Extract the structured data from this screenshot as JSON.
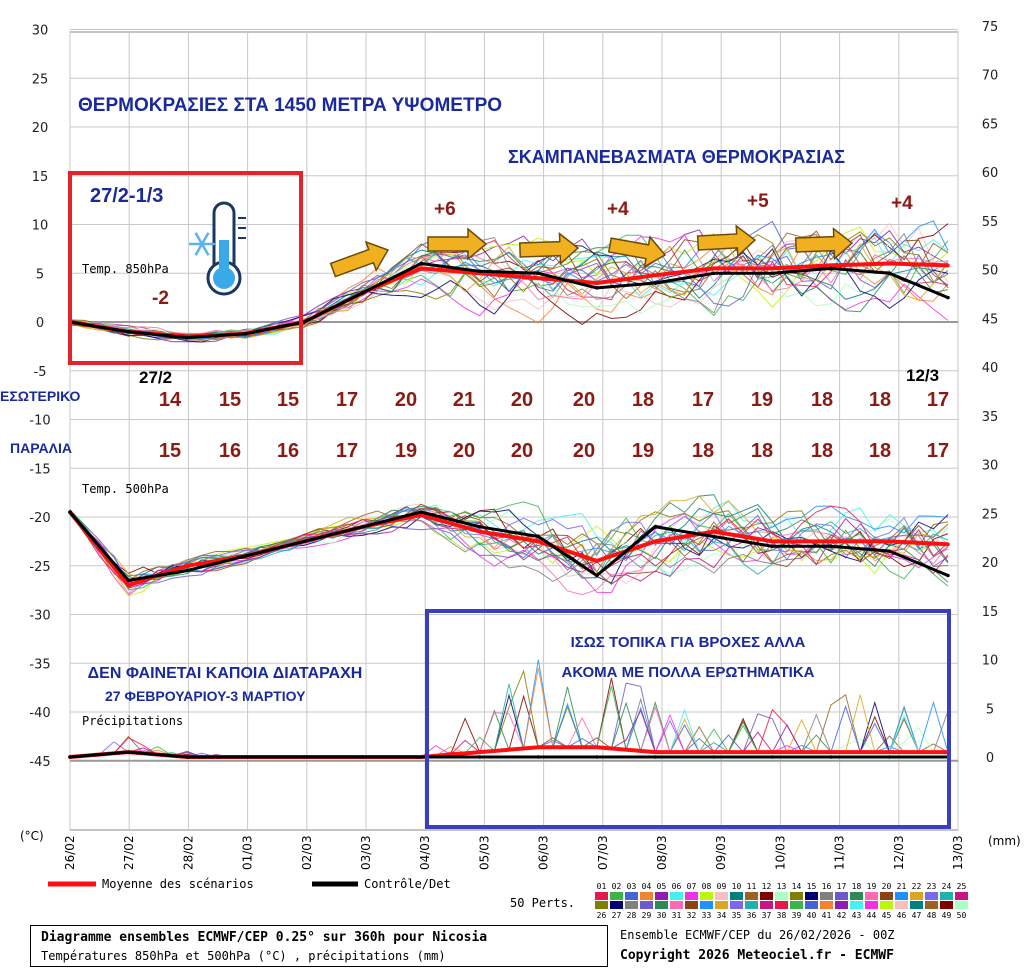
{
  "chart_data": {
    "type": "line",
    "dates": [
      "26/02",
      "27/02",
      "28/02",
      "01/03",
      "02/03",
      "03/03",
      "04/03",
      "05/03",
      "06/03",
      "07/03",
      "08/03",
      "09/03",
      "10/03",
      "11/03",
      "12/03",
      "13/03"
    ],
    "left_axis": {
      "unit": "(°C)",
      "ticks": [
        30,
        25,
        20,
        15,
        10,
        5,
        0,
        -5,
        -10,
        -15,
        -20,
        -25,
        -30,
        -35,
        -40,
        -45
      ]
    },
    "right_axis": {
      "unit": "(mm)",
      "ticks": [
        75,
        70,
        65,
        60,
        55,
        50,
        45,
        40,
        35,
        30,
        25,
        20,
        15,
        10,
        5,
        0
      ]
    },
    "panels": [
      {
        "label": "Temp. 850hPa",
        "series": [
          {
            "name": "Moyenne des scénarios",
            "color": "#ff1010",
            "values": [
              0,
              -1,
              -1.5,
              -1.2,
              0,
              3,
              5.5,
              5,
              4.5,
              4,
              4.8,
              5.5,
              5.5,
              5.8,
              6,
              5.8
            ]
          },
          {
            "name": "Contrôle/Det",
            "color": "#000000",
            "values": [
              0,
              -1,
              -1.6,
              -1.2,
              0,
              3,
              6,
              5.2,
              5,
              3.5,
              4,
              5,
              5,
              5.5,
              5,
              2.5
            ]
          }
        ]
      },
      {
        "label": "Temp. 500hPa",
        "series": [
          {
            "name": "Moyenne des scénarios",
            "color": "#ff1010",
            "values": [
              -19.5,
              -27,
              -25,
              -24,
              -22.5,
              -21,
              -19.8,
              -21.5,
              -22.5,
              -24.5,
              -22.5,
              -21.5,
              -22.5,
              -22.5,
              -22.5,
              -22.8
            ]
          },
          {
            "name": "Contrôle/Det",
            "color": "#000000",
            "values": [
              -19.5,
              -26.5,
              -25.5,
              -24,
              -22.5,
              -21,
              -19.5,
              -21,
              -22,
              -26,
              -21,
              -22,
              -23,
              -23,
              -23.5,
              -26
            ]
          }
        ]
      },
      {
        "label": "Précipitations",
        "series": [
          {
            "name": "Moyenne des scénarios",
            "color": "#ff1010",
            "values": [
              0,
              0.5,
              0,
              0,
              0,
              0,
              0,
              0.5,
              1,
              1,
              0.5,
              0.5,
              0.5,
              0.5,
              0.5,
              0.5
            ]
          },
          {
            "name": "Contrôle/Det",
            "color": "#000000",
            "values": [
              0,
              0.5,
              0,
              0,
              0,
              0,
              0,
              0,
              0,
              0,
              0,
              0,
              0,
              0,
              0,
              0
            ]
          }
        ]
      }
    ],
    "legend": {
      "mean": "Moyenne des scénarios",
      "control": "Contrôle/Det",
      "perts_label": "50 Perts.",
      "perts_row1": "01 02 03 04 05 06 07 08 09 10 11 12 13 14 15 16 17 18 19 20 21 22 23 24 25",
      "perts_row2": "26 27 28 29 30 31 32 33 34 35 36 37 38 39 40 41 42 43 44 45 46 47 48 49 50"
    }
  },
  "overlay": {
    "title_main": "ΘΕΡΜΟΚΡΑΣΙΕΣ ΣΤΑ 1450 ΜΕΤΡΑ ΥΨΟΜΕΤΡΟ",
    "title_sub": "ΣΚΑΜΠΑΝΕΒΑΣΜΑΤΑ ΘΕΡΜΟΚΡΑΣΙΑΣ",
    "range_label": "27/2-1/3",
    "min_label": "-2",
    "peaks": [
      "+6",
      "+4",
      "+5",
      "+4"
    ],
    "day_start": "27/2",
    "day_end": "12/3",
    "row1_label": "ΕΣΩΤΕΡΙΚΟ",
    "row1_values": [
      "14",
      "15",
      "15",
      "17",
      "20",
      "21",
      "20",
      "20",
      "18",
      "17",
      "19",
      "18",
      "18",
      "17"
    ],
    "row2_label": "ΠΑΡΑΛΙΑ",
    "row2_values": [
      "15",
      "16",
      "16",
      "17",
      "19",
      "20",
      "20",
      "20",
      "19",
      "18",
      "18",
      "18",
      "18",
      "17"
    ],
    "rain_line1": "ΙΣΩΣ ΤΟΠΙΚΑ ΓΙΑ ΒΡΟΧΕΣ ΑΛΛΑ",
    "rain_line2": "ΑΚΟΜΑ ΜΕ ΠΟΛΛΑ ΕΡΩΤΗΜΑΤΙΚΑ",
    "dist_line1": "ΔΕΝ ΦΑΙΝΕΤΑΙ ΚΑΠΟΙΑ ΔΙΑΤΑΡΑΧΗ",
    "dist_line2": "27 ΦΕΒΡΟΥΑΡΙΟΥ-3 ΜΑΡΤΙΟΥ"
  },
  "footer": {
    "line1": "Diagramme ensembles ECMWF/CEP 0.25° sur 360h pour Nicosia",
    "line2": "Températures 850hPa et 500hPa (°C) , précipitations (mm)",
    "ensemble": "Ensemble ECMWF/CEP du 26/02/2026 - 00Z",
    "copyright": "Copyright 2026 Meteociel.fr - ECMWF"
  },
  "colors": {
    "mean": "#ff1010",
    "control": "#000000",
    "box_red": "#e5232a",
    "box_blue": "#3a3fc0",
    "arrow": "#f0b020",
    "text_blue": "#1b2a9a",
    "text_darkred": "#8a1a14"
  }
}
